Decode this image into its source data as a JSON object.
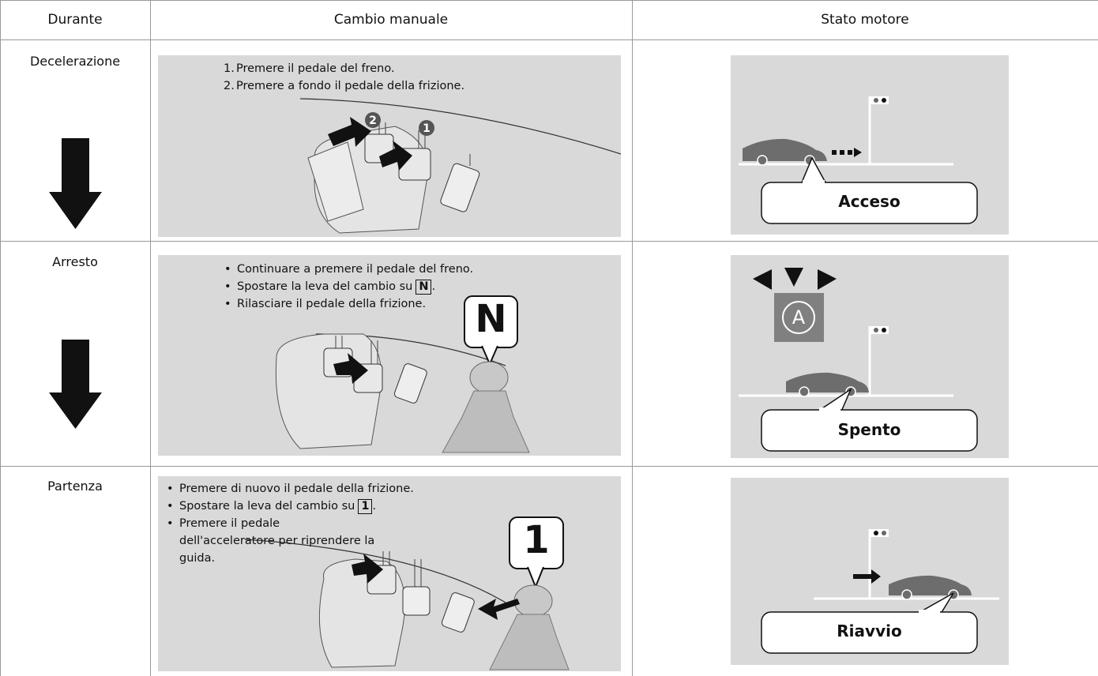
{
  "table": {
    "header": [
      "Durante",
      "Cambio manuale",
      "Stato motore"
    ],
    "rows": [
      {
        "phase": "Decelerazione",
        "steps": [
          {
            "marker": "1.",
            "text": "Premere il pedale del freno."
          },
          {
            "marker": "2.",
            "text": "Premere a fondo il pedale della frizione."
          }
        ],
        "callouts": [
          "2",
          "1"
        ],
        "engine_state": "Acceso"
      },
      {
        "phase": "Arresto",
        "steps": [
          {
            "text": "Continuare a premere il pedale del freno."
          },
          {
            "text": "Spostare la leva del cambio su",
            "key": "N",
            "after": "."
          },
          {
            "text": "Rilasciare il pedale della frizione."
          }
        ],
        "gear": "N",
        "engine_state": "Spento"
      },
      {
        "phase": "Partenza",
        "steps": [
          {
            "text": "Premere di nuovo il pedale della frizione."
          },
          {
            "text": "Spostare la leva del cambio su",
            "key": "1",
            "after": "."
          },
          {
            "text": "Premere il pedale dell'acceleratore per riprendere la guida."
          }
        ],
        "gear": "1",
        "engine_state": "Riavvio"
      }
    ]
  }
}
